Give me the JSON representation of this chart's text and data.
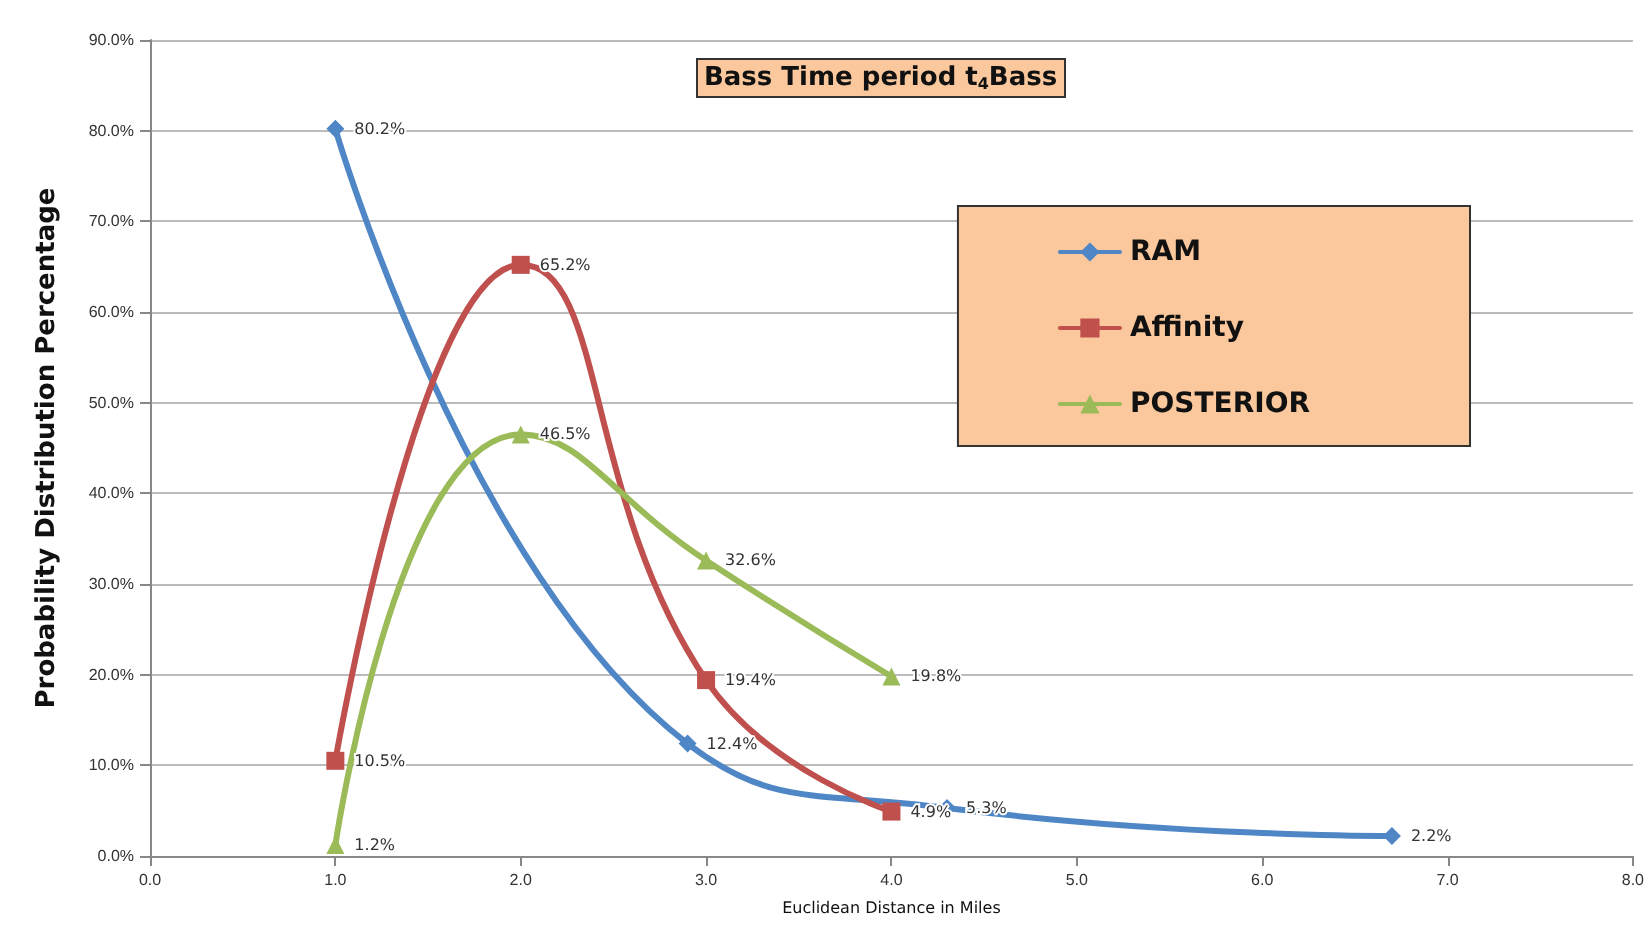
{
  "chart_data": {
    "type": "line",
    "title": "Bass Time period t$_{4}$Bass",
    "xlabel": "Euclidean Distance in Miles",
    "ylabel": "Probability Distribution Percentage",
    "xlim": [
      0,
      8
    ],
    "xticks": [
      {
        "value": 0,
        "label": "0.0"
      },
      {
        "value": 1,
        "label": "1.0"
      },
      {
        "value": 2,
        "label": "2.0"
      },
      {
        "value": 3,
        "label": "3.0"
      },
      {
        "value": 4,
        "label": "4.0"
      },
      {
        "value": 5,
        "label": "5.0"
      },
      {
        "value": 6,
        "label": "6.0"
      },
      {
        "value": 7,
        "label": "7.0"
      },
      {
        "value": 8,
        "label": "8.0"
      }
    ],
    "ylim": [
      0,
      90
    ],
    "yticks": [
      {
        "value": 0,
        "label": "0.0%"
      },
      {
        "value": 10,
        "label": "10.0%"
      },
      {
        "value": 20,
        "label": "20.0%"
      },
      {
        "value": 30,
        "label": "30.0%"
      },
      {
        "value": 40,
        "label": "40.0%"
      },
      {
        "value": 50,
        "label": "50.0%"
      },
      {
        "value": 60,
        "label": "60.0%"
      },
      {
        "value": 70,
        "label": "70.0%"
      },
      {
        "value": 80,
        "label": "80.0%"
      },
      {
        "value": 90,
        "label": "90.0%"
      }
    ],
    "grid": "y",
    "legend": "top right",
    "series": [
      {
        "name": "RAM",
        "color": "#4f86c6",
        "marker": "diamond",
        "x": [
          1.0,
          2.9,
          4.3,
          6.7
        ],
        "values": [
          80.2,
          12.4,
          5.3,
          2.2
        ],
        "value_labels": [
          "80.2%",
          "12.4%",
          "5.3%",
          "2.2%"
        ]
      },
      {
        "name": "Affinity",
        "color": "#c0504d",
        "marker": "square",
        "x": [
          1,
          2,
          3,
          4
        ],
        "values": [
          10.5,
          65.2,
          19.4,
          4.9
        ],
        "value_labels": [
          "10.5%",
          "65.2%",
          "19.4%",
          "4.9%"
        ]
      },
      {
        "name": "POSTERIOR",
        "color": "#9bbb59",
        "marker": "triangle",
        "x": [
          1,
          2,
          3,
          4
        ],
        "values": [
          1.2,
          46.5,
          32.6,
          19.8
        ],
        "value_labels": [
          "1.2%",
          "46.5%",
          "32.6%",
          "19.8%"
        ]
      }
    ]
  }
}
